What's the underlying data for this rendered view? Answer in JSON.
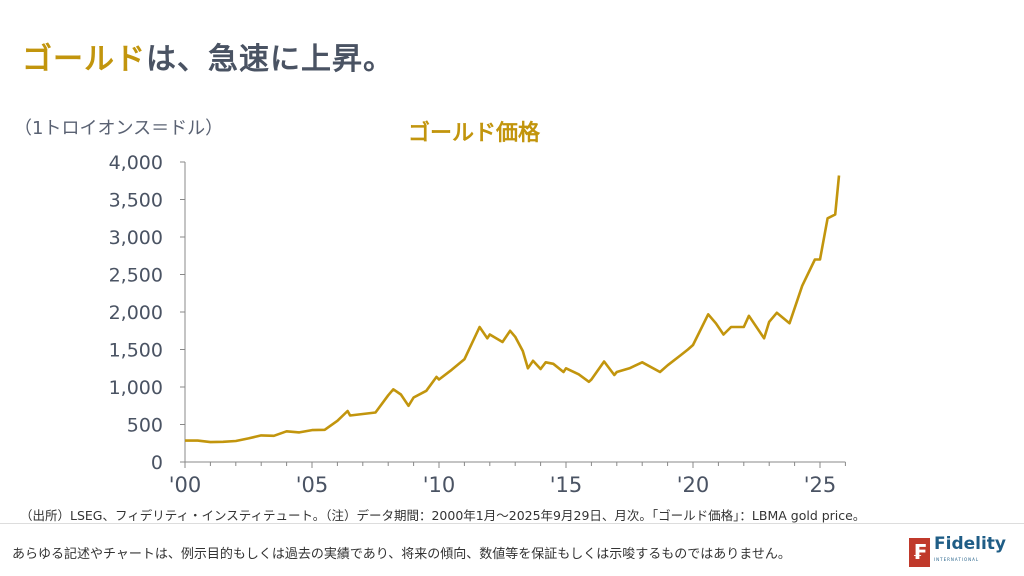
{
  "header": {
    "title_accent": "ゴールド",
    "title_rest": "は、急速に上昇。"
  },
  "colors": {
    "accent": "#c2950d",
    "text": "#4a5363"
  },
  "chart_data": {
    "type": "line",
    "title": "ゴールド価格",
    "ylabel": "（1トロイオンス＝ドル）",
    "ylim": [
      0,
      4000
    ],
    "yticks": [
      0,
      500,
      1000,
      1500,
      2000,
      2500,
      3000,
      3500,
      4000
    ],
    "ytick_labels": [
      "0",
      "500",
      "1,000",
      "1,500",
      "2,000",
      "2,500",
      "3,000",
      "3,500",
      "4,000"
    ],
    "xlim": [
      2000,
      2026
    ],
    "xticks": [
      2000,
      2005,
      2010,
      2015,
      2020,
      2025
    ],
    "xtick_labels": [
      "'00",
      "'05",
      "'10",
      "'15",
      "'20",
      "'25"
    ],
    "grid": false,
    "series": [
      {
        "color": "#c2950d",
        "x": [
          2000,
          2000.5,
          2001,
          2001.5,
          2002,
          2002.5,
          2003,
          2003.5,
          2004,
          2004.5,
          2005,
          2005.5,
          2006,
          2006.4,
          2006.5,
          2007,
          2007.5,
          2008,
          2008.2,
          2008.5,
          2008.8,
          2009,
          2009.5,
          2009.9,
          2010,
          2010.5,
          2011,
          2011.6,
          2011.9,
          2012,
          2012.5,
          2012.8,
          2013,
          2013.3,
          2013.5,
          2013.7,
          2014,
          2014.2,
          2014.5,
          2014.9,
          2015,
          2015.5,
          2015.9,
          2016,
          2016.5,
          2016.9,
          2017,
          2017.5,
          2018,
          2018.7,
          2019,
          2019.5,
          2019.8,
          2020,
          2020.6,
          2020.9,
          2021.2,
          2021.5,
          2022,
          2022.2,
          2022.8,
          2023,
          2023.3,
          2023.8,
          2024,
          2024.3,
          2024.8,
          2025,
          2025.3,
          2025.6,
          2025.75
        ],
        "y": [
          285,
          285,
          265,
          270,
          280,
          315,
          355,
          350,
          410,
          395,
          425,
          430,
          550,
          680,
          620,
          640,
          660,
          890,
          970,
          900,
          750,
          860,
          950,
          1135,
          1100,
          1230,
          1370,
          1800,
          1650,
          1700,
          1600,
          1750,
          1670,
          1480,
          1250,
          1350,
          1240,
          1330,
          1310,
          1200,
          1250,
          1170,
          1070,
          1100,
          1340,
          1160,
          1200,
          1250,
          1330,
          1200,
          1290,
          1420,
          1500,
          1560,
          1970,
          1850,
          1700,
          1800,
          1800,
          1950,
          1650,
          1870,
          1990,
          1850,
          2050,
          2350,
          2700,
          2700,
          3250,
          3300,
          3820
        ]
      }
    ]
  },
  "footer": {
    "source": "（出所）LSEG、フィデリティ・インスティテュート。（注）データ期間：2000年1月～2025年9月29日、月次。「ゴールド価格」：LBMA gold price。",
    "disclaimer": "あらゆる記述やチャートは、例示目的もしくは過去の実績であり、将来の傾向、数値等を保証もしくは示唆するものではありません。",
    "logo_text": "Fidelity",
    "logo_sub": "INTERNATIONAL"
  }
}
